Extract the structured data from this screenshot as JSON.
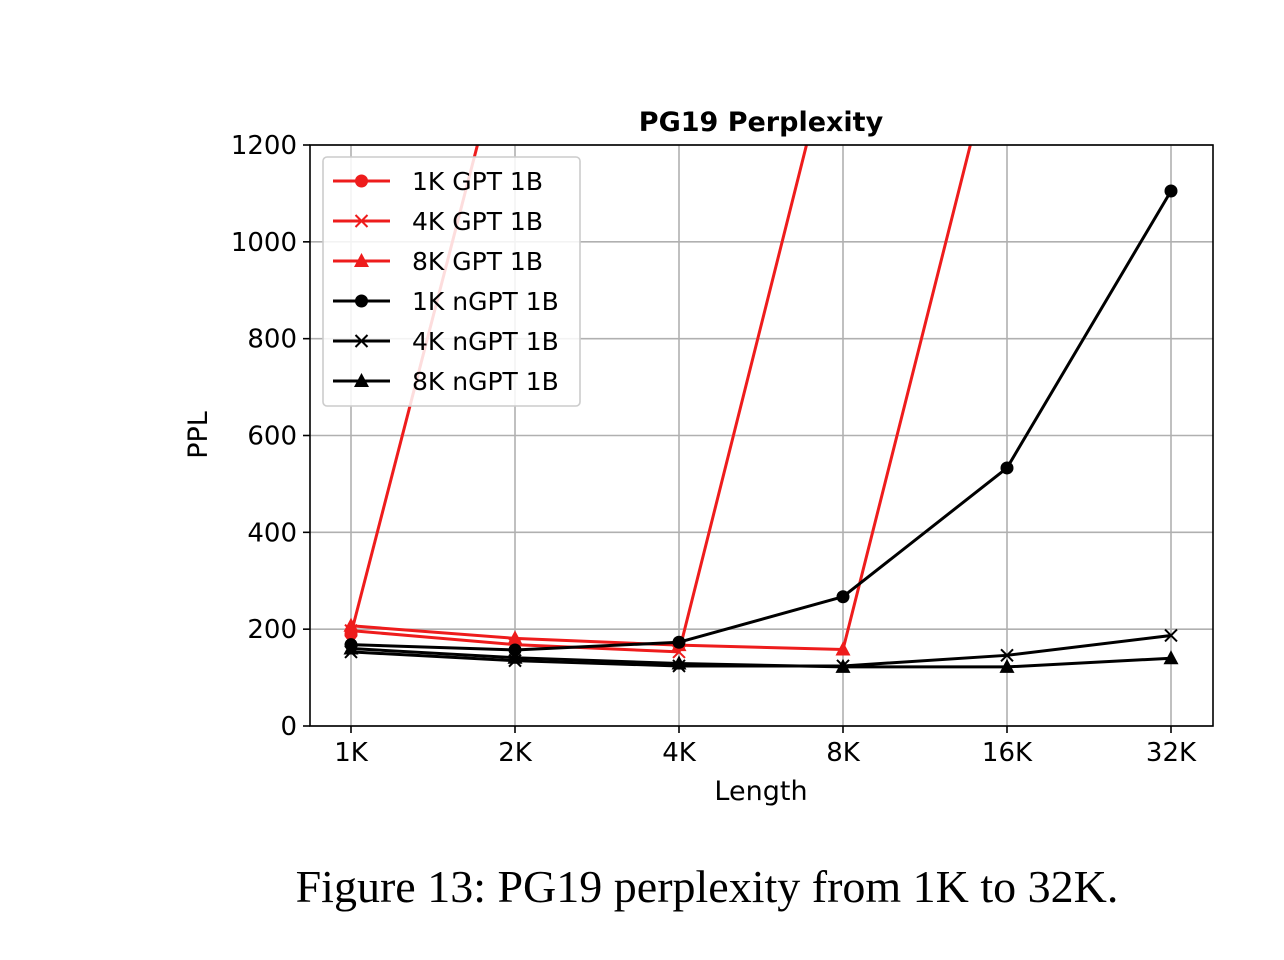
{
  "chart_data": {
    "type": "line",
    "title": "PG19 Perplexity",
    "xlabel": "Length",
    "ylabel": "PPL",
    "categories": [
      "1K",
      "2K",
      "4K",
      "8K",
      "16K",
      "32K"
    ],
    "ylim": [
      0,
      1200
    ],
    "yticks": [
      0,
      200,
      400,
      600,
      800,
      1000,
      1200
    ],
    "grid": true,
    "legend_position": "top-left",
    "series": [
      {
        "name": "1K GPT 1B",
        "color": "#ee1c1c",
        "marker": "circle",
        "values": [
          190,
          1500,
          null,
          null,
          null,
          null
        ]
      },
      {
        "name": "4K GPT 1B",
        "color": "#ee1c1c",
        "marker": "x",
        "values": [
          197,
          168,
          153,
          1500,
          null,
          null
        ]
      },
      {
        "name": "8K GPT 1B",
        "color": "#ee1c1c",
        "marker": "triangle",
        "values": [
          207,
          181,
          167,
          158,
          1500,
          null
        ]
      },
      {
        "name": "1K nGPT 1B",
        "color": "#000000",
        "marker": "circle",
        "values": [
          168,
          157,
          173,
          267,
          533,
          1105
        ]
      },
      {
        "name": "4K nGPT 1B",
        "color": "#000000",
        "marker": "x",
        "values": [
          153,
          135,
          124,
          124,
          146,
          187
        ]
      },
      {
        "name": "8K nGPT 1B",
        "color": "#000000",
        "marker": "triangle",
        "values": [
          160,
          141,
          129,
          122,
          122,
          140
        ]
      }
    ]
  },
  "caption": "Figure 13: PG19 perplexity from 1K to 32K."
}
